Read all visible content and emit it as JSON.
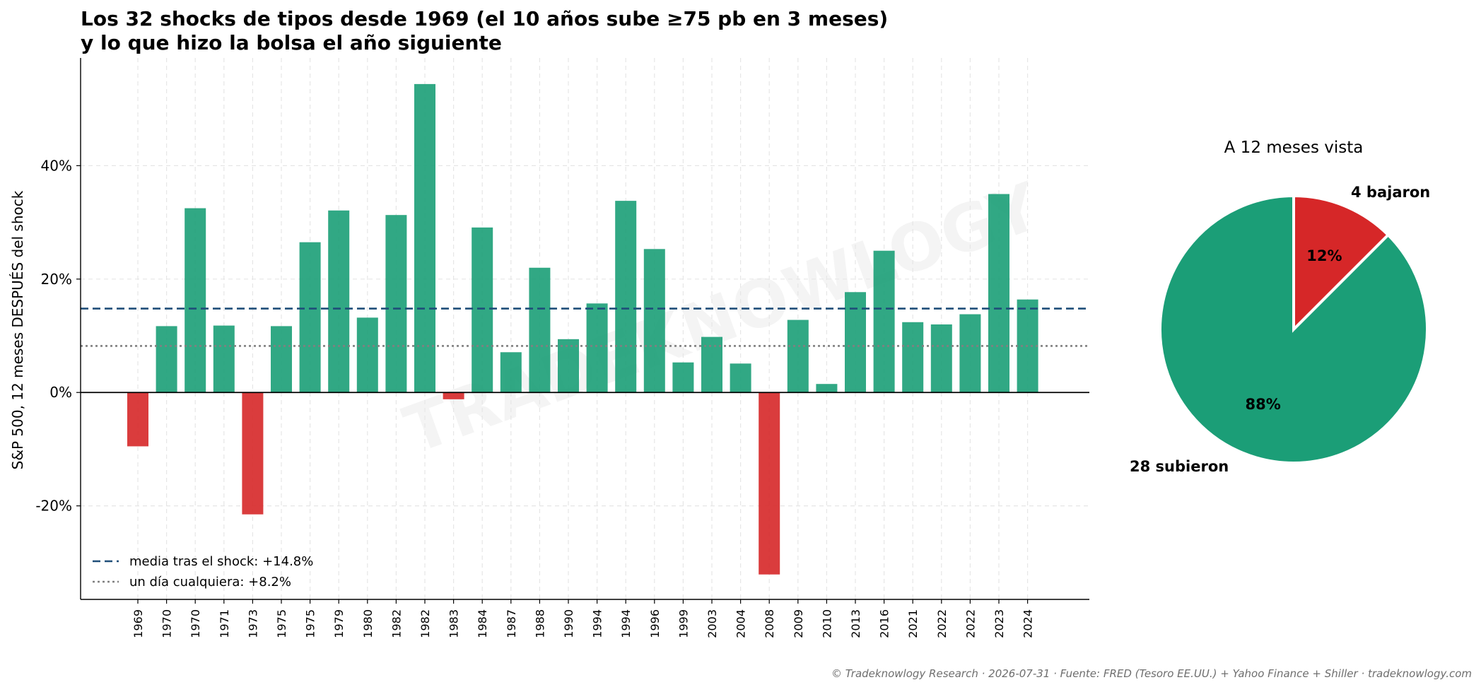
{
  "chart_data": [
    {
      "type": "bar",
      "title": "Los 32 shocks de tipos desde 1969 (el 10 años sube ≥75 pb en 3 meses)",
      "subtitle": "y lo que hizo la bolsa el año siguiente",
      "xlabel": "",
      "ylabel": "S&P 500, 12 meses DESPUÉS del shock",
      "categories": [
        "1969",
        "1970",
        "1970",
        "1971",
        "1973",
        "1975",
        "1975",
        "1979",
        "1980",
        "1982",
        "1982",
        "1983",
        "1984",
        "1987",
        "1988",
        "1990",
        "1994",
        "1994",
        "1996",
        "1999",
        "2003",
        "2004",
        "2008",
        "2009",
        "2010",
        "2013",
        "2016",
        "2021",
        "2022",
        "2022",
        "2023",
        "2024"
      ],
      "values": [
        -9.5,
        11.7,
        32.5,
        11.8,
        -21.5,
        11.7,
        26.5,
        32.1,
        13.2,
        31.3,
        54.4,
        -1.2,
        29.1,
        7.1,
        22.0,
        9.4,
        15.7,
        33.8,
        25.3,
        5.3,
        9.8,
        5.1,
        -32.1,
        12.8,
        1.5,
        17.7,
        25.0,
        12.4,
        12.0,
        13.8,
        35.0,
        16.4
      ],
      "ylim": [
        -36.5,
        59
      ],
      "yticks": [
        -20,
        0,
        20,
        40
      ],
      "ytick_labels": [
        "-20%",
        "0%",
        "20%",
        "40%"
      ],
      "grid": true,
      "colors": {
        "positive": "#1b9e77",
        "negative": "#d62728",
        "mean_line": "#1f4e79",
        "baseline_line": "#808080",
        "zero_line": "#000000"
      },
      "reference_lines": [
        {
          "name": "media tras el shock: +14.8%",
          "value": 14.8,
          "style": "dashed"
        },
        {
          "name": "un día cualquiera: +8.2%",
          "value": 8.2,
          "style": "dotted"
        }
      ],
      "legend_position": "lower-left",
      "watermark": "TRADEKNOWLOGY"
    },
    {
      "type": "pie",
      "title": "A 12 meses vista",
      "slices": [
        {
          "label": "4 bajaron",
          "value": 4,
          "percent_label": "12%",
          "color": "#d62728"
        },
        {
          "label": "28 subieron",
          "value": 28,
          "percent_label": "88%",
          "color": "#1b9e77"
        }
      ]
    }
  ],
  "footer": "© Tradeknowlogy Research   ·   2026-07-31   ·   Fuente: FRED (Tesoro EE.UU.) + Yahoo Finance + Shiller   ·   tradeknowlogy.com"
}
